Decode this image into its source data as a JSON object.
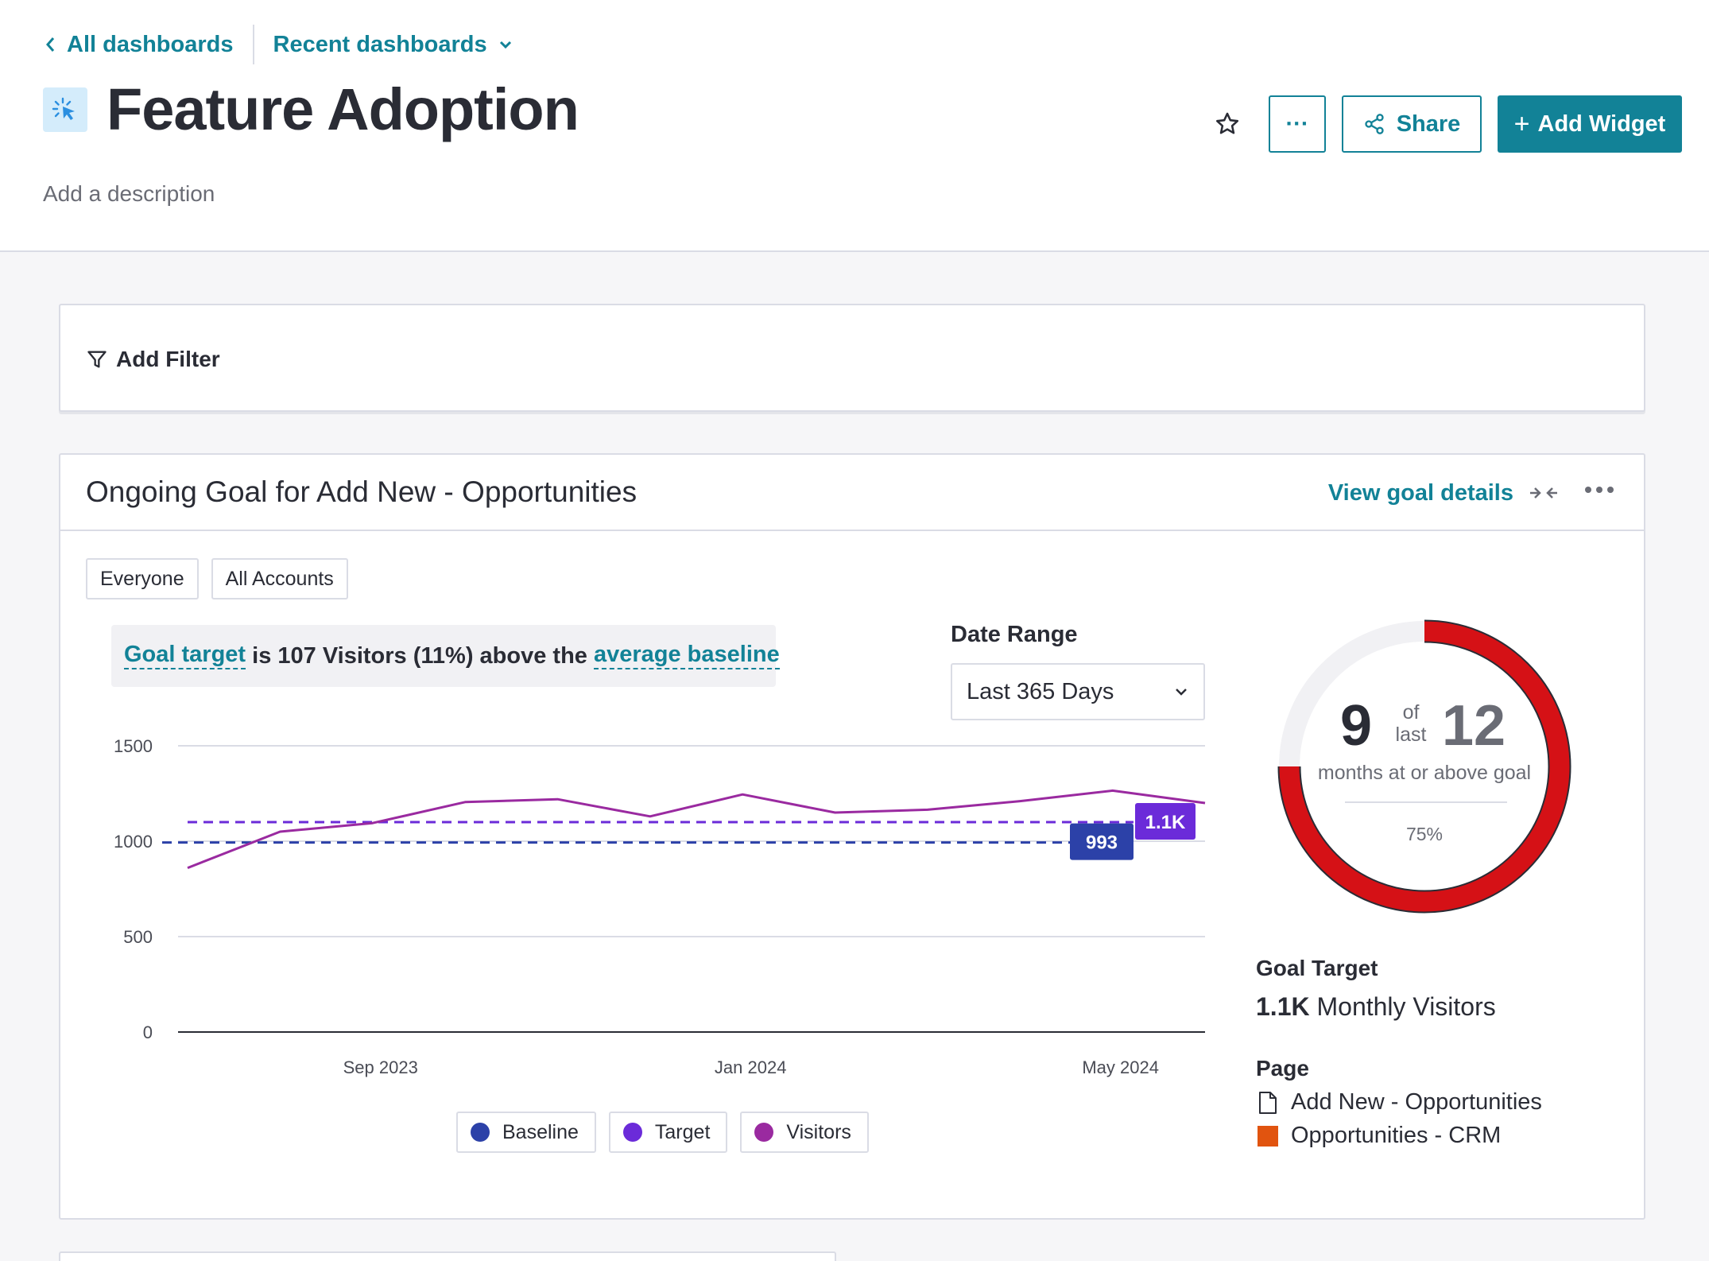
{
  "breadcrumbs": {
    "all_dashboards": "All dashboards",
    "recent_dashboards": "Recent dashboards"
  },
  "header": {
    "title": "Feature Adoption",
    "description_placeholder": "Add a description",
    "more_label": "···",
    "share_label": "Share",
    "add_widget_label": "Add Widget",
    "add_widget_plus": "+"
  },
  "filter": {
    "add_filter_label": "Add Filter"
  },
  "widget": {
    "title": "Ongoing Goal for Add New - Opportunities",
    "view_goal_details": "View goal details",
    "segments": [
      "Everyone",
      "All Accounts"
    ],
    "goal_note": {
      "link1": "Goal target",
      "middle": " is 107 Visitors (11%) above the ",
      "link2": "average baseline"
    },
    "date_range": {
      "label": "Date Range",
      "value": "Last 365 Days"
    },
    "donut": {
      "achieved": "9",
      "of": "of",
      "last": "last",
      "total": "12",
      "caption": "months at or above goal",
      "percent": "75%",
      "fraction": 0.75
    },
    "goal_target": {
      "label": "Goal Target",
      "value_bold": "1.1K",
      "value_rest": " Monthly Visitors"
    },
    "page": {
      "label": "Page",
      "items": [
        {
          "name": "Add New - Opportunities",
          "icon": "document-icon"
        },
        {
          "name": "Opportunities - CRM",
          "icon": "app-square-icon",
          "color": "#e1540f"
        }
      ]
    }
  },
  "colors": {
    "accent": "#128297",
    "baseline": "#2c41a8",
    "target": "#6b2bd9",
    "visitors": "#9a2aa0",
    "donut_fill": "#d51116",
    "donut_track": "#f1f1f4"
  },
  "chart_data": {
    "type": "line",
    "x": [
      "2023-07",
      "2023-08",
      "2023-09",
      "2023-10",
      "2023-11",
      "2023-12",
      "2024-01",
      "2024-02",
      "2024-03",
      "2024-04",
      "2024-05",
      "2024-06"
    ],
    "x_tick_labels": [
      "Sep 2023",
      "Jan 2024",
      "May 2024"
    ],
    "y_ticks": [
      "0",
      "500",
      "1000",
      "1500"
    ],
    "ylim": [
      0,
      1500
    ],
    "grid": true,
    "series": [
      {
        "name": "Visitors",
        "values": [
          860,
          1050,
          1095,
          1205,
          1220,
          1130,
          1245,
          1150,
          1165,
          1210,
          1265,
          1200
        ]
      },
      {
        "name": "Target",
        "values": [
          1100,
          1100,
          1100,
          1100,
          1100,
          1100,
          1100,
          1100,
          1100,
          1100,
          1100,
          1100
        ],
        "label": "1.1K"
      },
      {
        "name": "Baseline",
        "values": [
          993,
          993,
          993,
          993,
          993,
          993,
          993,
          993,
          993,
          993,
          993,
          993
        ],
        "label": "993"
      }
    ]
  }
}
